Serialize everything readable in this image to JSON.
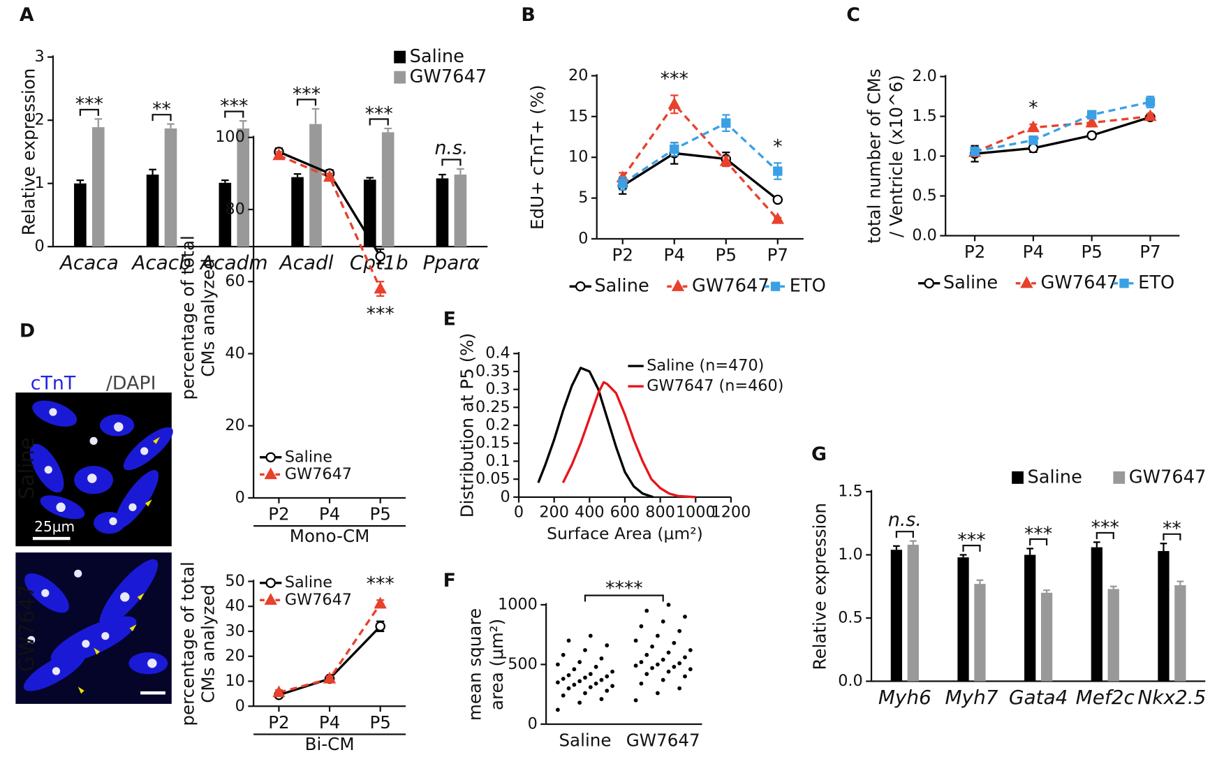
{
  "chart_data": [
    {
      "panel": "A",
      "type": "bar",
      "ylabel": "Relative expression",
      "category_style": "italic",
      "categories": [
        "Acaca",
        "Acacb",
        "Acadm",
        "Acadl",
        "Cpt1b",
        "Pparα"
      ],
      "series": [
        {
          "name": "Saline",
          "color": "#000000",
          "values": [
            1.0,
            1.14,
            1.01,
            1.1,
            1.06,
            1.08
          ],
          "errors": [
            0.05,
            0.08,
            0.04,
            0.05,
            0.03,
            0.06
          ]
        },
        {
          "name": "GW7647",
          "color": "#999999",
          "values": [
            1.89,
            1.87,
            1.87,
            1.94,
            1.81,
            1.14
          ],
          "errors": [
            0.13,
            0.07,
            0.12,
            0.24,
            0.06,
            0.09
          ]
        }
      ],
      "significance": [
        "***",
        "**",
        "***",
        "***",
        "***",
        "n.s."
      ],
      "ylim": [
        0,
        3
      ],
      "yticks": [
        0,
        1,
        2,
        3
      ],
      "legend": "top-right"
    },
    {
      "panel": "B",
      "type": "line",
      "ylabel": "EdU+ cTnT+ (%)",
      "categories": [
        "P2",
        "P4",
        "P5",
        "P7"
      ],
      "series": [
        {
          "name": "Saline",
          "color": "#000000",
          "marker": "circle-open",
          "dashed": false,
          "values": [
            6.5,
            10.5,
            9.8,
            4.8
          ],
          "errors": [
            1.0,
            1.3,
            0.8,
            0.3
          ]
        },
        {
          "name": "GW7647",
          "color": "#e8412c",
          "marker": "triangle",
          "dashed": true,
          "values": [
            7.5,
            16.5,
            9.5,
            2.4
          ],
          "errors": [
            0.6,
            1.1,
            0.6,
            0.2
          ]
        },
        {
          "name": "ETO",
          "color": "#3aa0e6",
          "marker": "square",
          "dashed": true,
          "values": [
            6.8,
            11,
            14.2,
            8.3
          ],
          "errors": [
            0.8,
            0.8,
            1.0,
            1.0
          ]
        }
      ],
      "significance": [
        null,
        "***",
        null,
        "*"
      ],
      "ylim": [
        0,
        20
      ],
      "yticks": [
        0,
        5,
        10,
        15,
        20
      ],
      "legend": "bottom"
    },
    {
      "panel": "C",
      "type": "line",
      "ylabel": [
        "total number of CMs",
        "/ Ventricle (x10^6)"
      ],
      "categories": [
        "P2",
        "P4",
        "P5",
        "P7"
      ],
      "series": [
        {
          "name": "Saline",
          "color": "#000000",
          "marker": "circle-open",
          "dashed": false,
          "values": [
            1.03,
            1.1,
            1.26,
            1.49
          ],
          "errors": [
            0.1,
            0.05,
            0.04,
            0.03
          ]
        },
        {
          "name": "GW7647",
          "color": "#e8412c",
          "marker": "triangle",
          "dashed": true,
          "values": [
            1.05,
            1.36,
            1.42,
            1.5
          ],
          "errors": [
            0.05,
            0.04,
            0.05,
            0.03
          ]
        },
        {
          "name": "ETO",
          "color": "#3aa0e6",
          "marker": "square",
          "dashed": true,
          "values": [
            1.06,
            1.2,
            1.52,
            1.68
          ],
          "errors": [
            0.05,
            0.05,
            0.05,
            0.07
          ]
        }
      ],
      "significance": [
        null,
        "*",
        null,
        null
      ],
      "ylim": [
        0,
        2
      ],
      "yticks": [
        {
          "value": 0,
          "label": "0.0"
        },
        0.5,
        {
          "value": 1,
          "label": "1.0"
        },
        1.5,
        {
          "value": 2,
          "label": "2.0"
        }
      ],
      "legend": "bottom"
    },
    {
      "panel": "D",
      "type": "line",
      "ylabel": [
        "percentage of total",
        "CMs analyzed"
      ],
      "xlabel": "Mono-CM",
      "categories": [
        "P2",
        "P4",
        "P5"
      ],
      "series": [
        {
          "name": "Saline",
          "color": "#000000",
          "marker": "circle-open",
          "dashed": false,
          "values": [
            96,
            90,
            67
          ],
          "errors": [
            1,
            1,
            2
          ]
        },
        {
          "name": "GW7647",
          "color": "#e8412c",
          "marker": "triangle",
          "dashed": true,
          "values": [
            95,
            89,
            58
          ],
          "errors": [
            1,
            1,
            2
          ]
        }
      ],
      "significance": [
        null,
        null,
        "***"
      ],
      "ylim": [
        0,
        100
      ],
      "yticks": [
        0,
        20,
        40,
        60,
        80,
        100
      ],
      "legend": "lower-left"
    },
    {
      "type": "line",
      "ylabel": [
        "percentage of total",
        "CMs analyzed"
      ],
      "xlabel": "Bi-CM",
      "categories": [
        "P2",
        "P4",
        "P5"
      ],
      "series": [
        {
          "name": "Saline",
          "color": "#000000",
          "marker": "circle-open",
          "dashed": false,
          "values": [
            4.5,
            11,
            32
          ],
          "errors": [
            1,
            1,
            2
          ]
        },
        {
          "name": "GW7647",
          "color": "#e8412c",
          "marker": "triangle",
          "dashed": true,
          "values": [
            5.5,
            11,
            41
          ],
          "errors": [
            1,
            1,
            1.5
          ]
        }
      ],
      "significance": [
        null,
        null,
        "***"
      ],
      "ylim": [
        0,
        50
      ],
      "yticks": [
        0,
        10,
        20,
        30,
        40,
        50
      ],
      "legend": "top-left"
    },
    {
      "panel": "E",
      "type": "curve",
      "ylabel": "Distribution at P5 (%)",
      "xlabel": "Surface Area (μm²)",
      "series": [
        {
          "name": "Saline (n=470)",
          "color": "#000000",
          "x": [
            110,
            150,
            200,
            250,
            300,
            350,
            400,
            450,
            500,
            550,
            600,
            650,
            700,
            760
          ],
          "values": [
            0.04,
            0.09,
            0.16,
            0.24,
            0.31,
            0.36,
            0.35,
            0.3,
            0.22,
            0.14,
            0.07,
            0.03,
            0.01,
            0
          ]
        },
        {
          "name": "GW7647 (n=460)",
          "color": "#e8141c",
          "x": [
            250,
            300,
            350,
            400,
            450,
            480,
            500,
            550,
            600,
            650,
            700,
            750,
            800,
            850,
            900,
            1000
          ],
          "values": [
            0.04,
            0.09,
            0.15,
            0.22,
            0.29,
            0.32,
            0.315,
            0.29,
            0.23,
            0.16,
            0.1,
            0.05,
            0.025,
            0.01,
            0.003,
            0
          ]
        }
      ],
      "xlim": [
        0,
        1200
      ],
      "xticks": [
        0,
        200,
        400,
        600,
        800,
        1000,
        1200
      ],
      "ylim": [
        0,
        0.4
      ],
      "yticks": [
        0,
        0.05,
        0.1,
        0.15,
        0.2,
        0.25,
        0.3,
        0.35,
        0.4
      ],
      "legend": "top-right"
    },
    {
      "panel": "F",
      "type": "strip",
      "ylabel": [
        "mean square",
        "area (μm²)"
      ],
      "categories": [
        "Saline",
        "GW7647"
      ],
      "color": "#000000",
      "values": [
        [
          120,
          180,
          210,
          240,
          260,
          280,
          300,
          310,
          320,
          330,
          340,
          350,
          360,
          370,
          380,
          390,
          400,
          410,
          420,
          440,
          460,
          480,
          500,
          520,
          550,
          580,
          620,
          660,
          700,
          740
        ],
        [
          200,
          260,
          300,
          340,
          370,
          400,
          420,
          440,
          460,
          470,
          480,
          490,
          500,
          510,
          520,
          540,
          560,
          580,
          600,
          620,
          650,
          680,
          700,
          740,
          780,
          820,
          860,
          900,
          950,
          1000
        ]
      ],
      "comparison": "****",
      "ylim": [
        0,
        1000
      ],
      "yticks": [
        0,
        500,
        1000
      ]
    },
    {
      "panel": "G",
      "type": "bar",
      "ylabel": "Relative expression",
      "category_style": "italic",
      "categories": [
        "Myh6",
        "Myh7",
        "Gata4",
        "Mef2c",
        "Nkx2.5"
      ],
      "series": [
        {
          "name": "Saline",
          "color": "#000000",
          "values": [
            1.04,
            0.98,
            1.0,
            1.06,
            1.03
          ],
          "errors": [
            0.03,
            0.02,
            0.05,
            0.04,
            0.06
          ]
        },
        {
          "name": "GW7647",
          "color": "#999999",
          "values": [
            1.08,
            0.77,
            0.7,
            0.73,
            0.76
          ],
          "errors": [
            0.03,
            0.03,
            0.02,
            0.02,
            0.03
          ]
        }
      ],
      "significance": [
        "n.s.",
        "***",
        "***",
        "***",
        "**"
      ],
      "ylim": [
        0,
        1.5
      ],
      "yticks": [
        {
          "value": 0,
          "label": "0.0"
        },
        0.5,
        {
          "value": 1,
          "label": "1.0"
        },
        1.5
      ],
      "legend": "top"
    }
  ],
  "micrographs": {
    "stain": [
      "cTnT",
      "/DAPI"
    ],
    "rows": [
      "Saline",
      "GW7647"
    ],
    "scale": "25μm"
  }
}
